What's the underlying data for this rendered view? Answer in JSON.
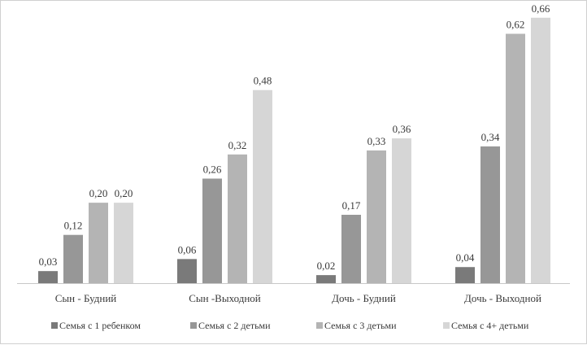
{
  "chart_data": {
    "type": "bar",
    "categories": [
      "Сын - Будний",
      "Сын -Выходной",
      "Дочь - Будний",
      "Дочь - Выходной"
    ],
    "series": [
      {
        "name": "Семья с 1 ребенком",
        "color": "#7a7a7a",
        "values": [
          0.03,
          0.06,
          0.02,
          0.04
        ],
        "labels": [
          "0,03",
          "0,06",
          "0,02",
          "0,04"
        ]
      },
      {
        "name": "Семья с 2 детьми",
        "color": "#979797",
        "values": [
          0.12,
          0.26,
          0.17,
          0.34
        ],
        "labels": [
          "0,12",
          "0,26",
          "0,17",
          "0,34"
        ]
      },
      {
        "name": "Семья с 3 детьми",
        "color": "#b4b4b4",
        "values": [
          0.2,
          0.32,
          0.33,
          0.62
        ],
        "labels": [
          "0,20",
          "0,32",
          "0,33",
          "0,62"
        ]
      },
      {
        "name": "Семья с 4+ детьми",
        "color": "#d6d6d6",
        "values": [
          0.2,
          0.48,
          0.36,
          0.66
        ],
        "labels": [
          "0,20",
          "0,48",
          "0,36",
          "0,66"
        ]
      }
    ],
    "title": "",
    "xlabel": "",
    "ylabel": "",
    "ylim": [
      0,
      0.7
    ],
    "grid": false,
    "legend": "bottom"
  }
}
